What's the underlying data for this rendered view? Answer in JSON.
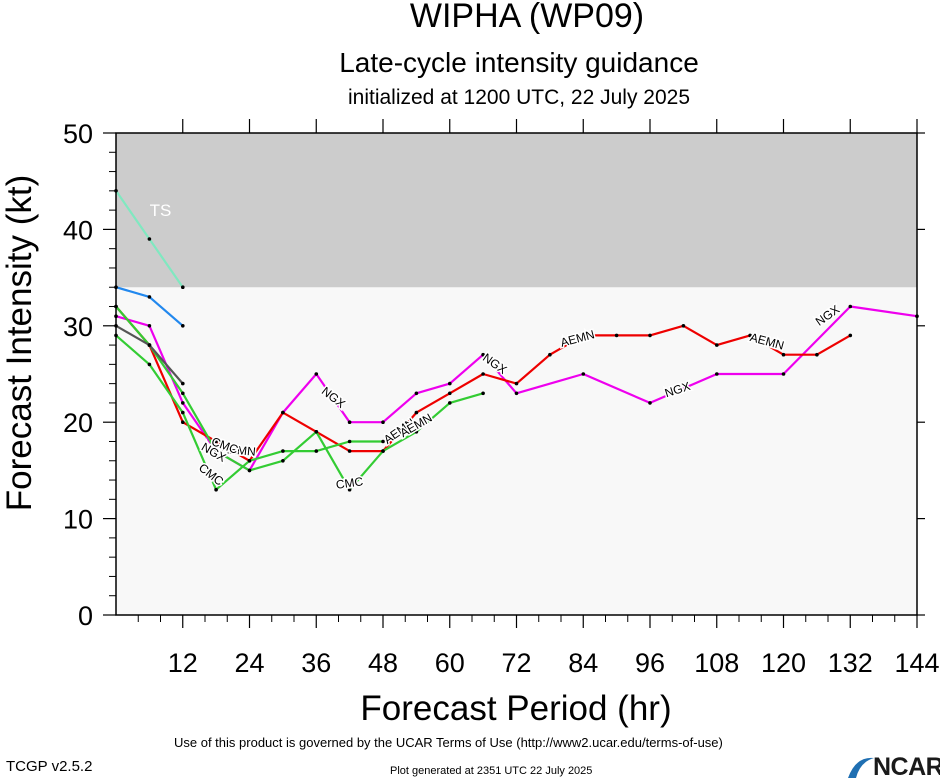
{
  "header": {
    "title": "WIPHA (WP09)",
    "subtitle": "Late-cycle intensity guidance",
    "initialized": "initialized at 1200 UTC, 22 July 2025"
  },
  "footer": {
    "terms": "Use of this product is governed by the UCAR Terms of Use (http://www2.ucar.edu/terms-of-use)",
    "version": "TCGP v2.5.2",
    "generated": "Plot generated at 2351 UTC   22 July 2025",
    "logo_text": "NCAR",
    "logo_color": "#1f6fb2"
  },
  "chart_data": {
    "type": "line",
    "xlabel": "Forecast Period (hr)",
    "ylabel": "Forecast Intensity (kt)",
    "xlim": [
      0,
      144
    ],
    "ylim": [
      0,
      50
    ],
    "xticks": [
      12,
      24,
      36,
      48,
      60,
      72,
      84,
      96,
      108,
      120,
      132,
      144
    ],
    "yticks": [
      0,
      10,
      20,
      30,
      40,
      50
    ],
    "threshold_band": {
      "from": 34,
      "to": 50,
      "label": "TS",
      "label_at": [
        8,
        42
      ],
      "color": "#cccccc"
    },
    "plot_background": "#f8f8f8",
    "series": [
      {
        "color": "#80e8c0",
        "points": [
          [
            0,
            44
          ],
          [
            6,
            39
          ],
          [
            12,
            34
          ]
        ]
      },
      {
        "color": "#2288ee",
        "points": [
          [
            0,
            34
          ],
          [
            6,
            33
          ],
          [
            12,
            30
          ]
        ]
      },
      {
        "color": "#ee00ee",
        "points": [
          [
            0,
            31
          ],
          [
            6,
            30
          ],
          [
            12,
            22
          ],
          [
            18,
            17
          ],
          [
            24,
            15
          ],
          [
            30,
            21
          ],
          [
            36,
            25
          ],
          [
            42,
            20
          ],
          [
            48,
            20
          ],
          [
            54,
            23
          ],
          [
            60,
            24
          ],
          [
            66,
            27
          ],
          [
            72,
            23
          ],
          [
            84,
            25
          ],
          [
            96,
            22
          ],
          [
            108,
            25
          ],
          [
            120,
            25
          ],
          [
            132,
            32
          ],
          [
            144,
            31
          ]
        ]
      },
      {
        "color": "#ee0000",
        "points": [
          [
            0,
            32
          ],
          [
            6,
            28
          ],
          [
            12,
            20
          ],
          [
            18,
            18
          ],
          [
            24,
            16
          ],
          [
            30,
            21
          ],
          [
            36,
            19
          ],
          [
            42,
            17
          ],
          [
            48,
            17
          ],
          [
            54,
            21
          ],
          [
            60,
            23
          ],
          [
            66,
            25
          ],
          [
            72,
            24
          ],
          [
            78,
            27
          ],
          [
            84,
            29
          ],
          [
            90,
            29
          ],
          [
            96,
            29
          ],
          [
            102,
            30
          ],
          [
            108,
            28
          ],
          [
            114,
            29
          ],
          [
            120,
            27
          ],
          [
            126,
            27
          ],
          [
            132,
            29
          ]
        ]
      },
      {
        "color": "#33cc33",
        "points": [
          [
            0,
            32
          ],
          [
            6,
            28
          ],
          [
            12,
            23
          ],
          [
            18,
            17
          ],
          [
            24,
            15
          ],
          [
            30,
            16
          ],
          [
            36,
            19
          ],
          [
            42,
            13
          ],
          [
            48,
            17
          ],
          [
            54,
            19
          ],
          [
            60,
            22
          ],
          [
            66,
            23
          ]
        ]
      },
      {
        "color": "#33cc33",
        "points": [
          [
            0,
            29
          ],
          [
            6,
            26
          ],
          [
            12,
            21
          ],
          [
            18,
            13
          ],
          [
            24,
            16
          ],
          [
            30,
            17
          ],
          [
            36,
            17
          ],
          [
            42,
            18
          ],
          [
            48,
            18
          ]
        ]
      },
      {
        "color": "#555555",
        "points": [
          [
            0,
            30
          ],
          [
            6,
            28
          ],
          [
            12,
            24
          ]
        ]
      }
    ],
    "annotations": [
      {
        "text": "NGX",
        "x": 39,
        "y": 22.5,
        "angle": 38
      },
      {
        "text": "NGX",
        "x": 68,
        "y": 26,
        "angle": 35
      },
      {
        "text": "NGX",
        "x": 101,
        "y": 23.3,
        "angle": -18
      },
      {
        "text": "NGX",
        "x": 128,
        "y": 31,
        "angle": -35
      },
      {
        "text": "AEMN",
        "x": 83,
        "y": 28.6,
        "angle": -15
      },
      {
        "text": "AEMN",
        "x": 117,
        "y": 28.3,
        "angle": 15
      },
      {
        "text": "AEMN",
        "x": 51,
        "y": 19,
        "angle": -35
      },
      {
        "text": "AEMN",
        "x": 54,
        "y": 19.6,
        "angle": -30
      },
      {
        "text": "AEMN",
        "x": 22,
        "y": 17,
        "angle": 5
      },
      {
        "text": "CMC",
        "x": 42,
        "y": 13.6,
        "angle": -8
      },
      {
        "text": "CMC",
        "x": 17,
        "y": 14.5,
        "angle": 38
      },
      {
        "text": "CMC",
        "x": 19.5,
        "y": 17.5,
        "angle": 20
      },
      {
        "text": "NGX",
        "x": 17.5,
        "y": 16.8,
        "angle": 30
      }
    ]
  }
}
